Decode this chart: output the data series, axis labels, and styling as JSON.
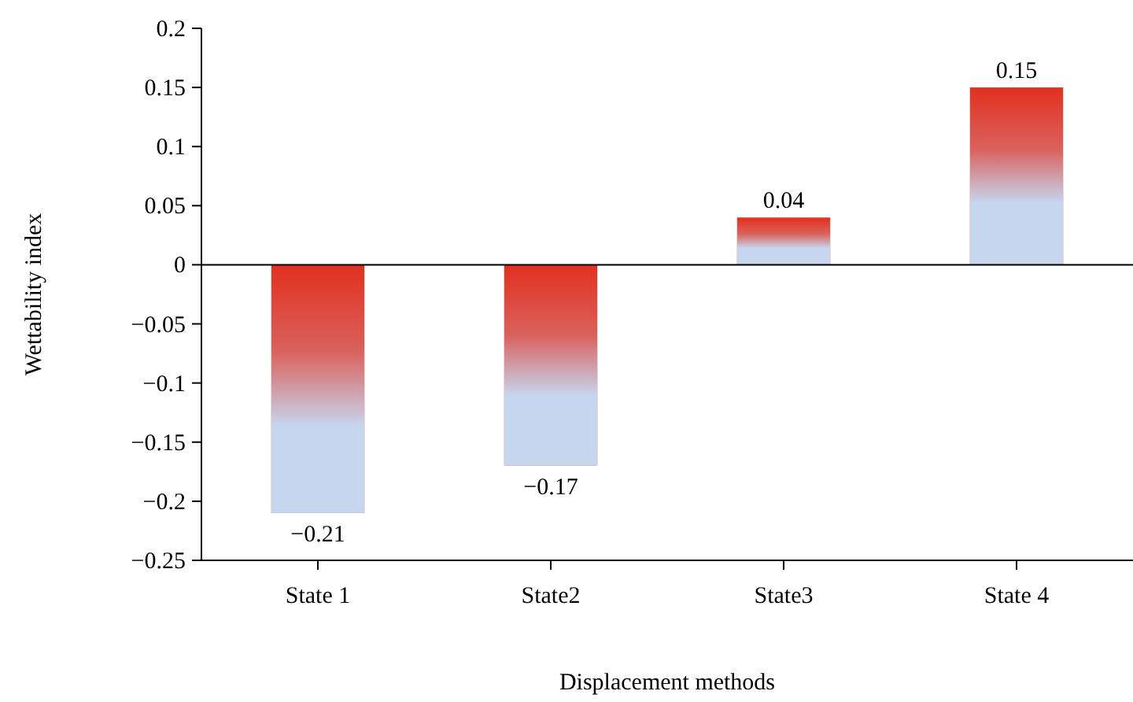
{
  "chart_data": {
    "type": "bar",
    "xlabel": "Displacement methods",
    "ylabel": "Wettability index",
    "categories": [
      "State 1",
      "State2",
      "State3",
      "State 4"
    ],
    "values": [
      -0.21,
      -0.17,
      0.04,
      0.15
    ],
    "color": "#e2301f",
    "ylim": [
      -0.25,
      0.2
    ],
    "yticks": [
      -0.25,
      -0.2,
      -0.15,
      -0.1,
      -0.05,
      0,
      0.05,
      0.1,
      0.15,
      0.2
    ],
    "data_labels": true
  }
}
